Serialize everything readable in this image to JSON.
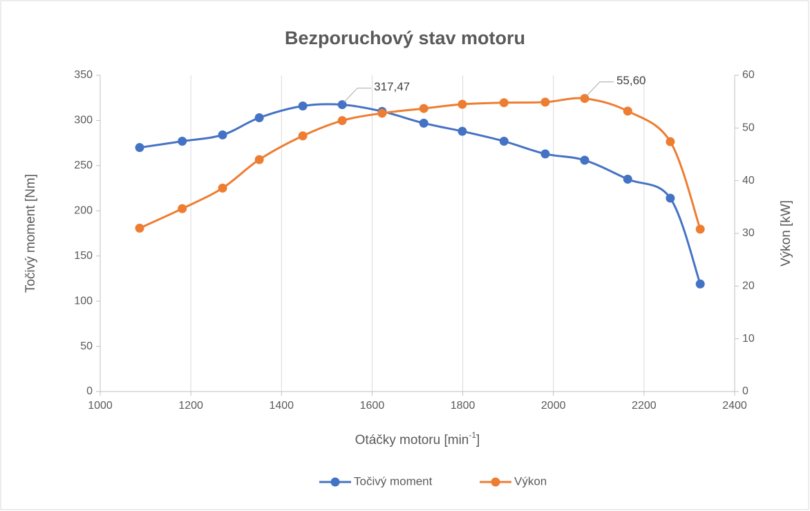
{
  "chart_data": {
    "type": "line",
    "title": "Bezporuchový stav motoru",
    "xlabel": [
      "Otáčky motoru [min",
      "-1",
      "]"
    ],
    "ylabel": "Točivý moment [Nm]",
    "y2label": "Výkon [kW]",
    "x": [
      1087,
      1181,
      1270,
      1351,
      1447,
      1534,
      1622,
      1714,
      1799,
      1891,
      1982,
      2069,
      2164,
      2258,
      2324
    ],
    "series": [
      {
        "name": "Točivý moment",
        "color": "#4472c4",
        "values": [
          270,
          277,
          284,
          303,
          316,
          317.47,
          310,
          297,
          288,
          277,
          263,
          256,
          235,
          214,
          119
        ],
        "value_labels": [
          null,
          null,
          null,
          null,
          null,
          "317,47",
          null,
          null,
          null,
          null,
          null,
          null,
          null,
          null,
          null
        ]
      },
      {
        "name": "Výkon",
        "color": "#ed7d31",
        "axis": "y2",
        "values": [
          31.0,
          34.7,
          38.6,
          44.0,
          48.5,
          51.4,
          52.8,
          53.7,
          54.5,
          54.8,
          54.9,
          55.6,
          53.2,
          47.4,
          30.8
        ],
        "value_labels": [
          null,
          null,
          null,
          null,
          null,
          null,
          null,
          null,
          null,
          null,
          null,
          "55,60",
          null,
          null,
          null
        ]
      }
    ],
    "xlim": [
      1000,
      2400
    ],
    "xticks": [
      1000,
      1200,
      1400,
      1600,
      1800,
      2000,
      2200,
      2400
    ],
    "ylim": [
      0,
      350
    ],
    "yticks": [
      0,
      50,
      100,
      150,
      200,
      250,
      300,
      350
    ],
    "y2lim": [
      0,
      60
    ],
    "y2ticks": [
      0,
      10,
      20,
      30,
      40,
      50,
      60
    ],
    "grid": "x",
    "smooth": true,
    "legend": "bottom"
  }
}
